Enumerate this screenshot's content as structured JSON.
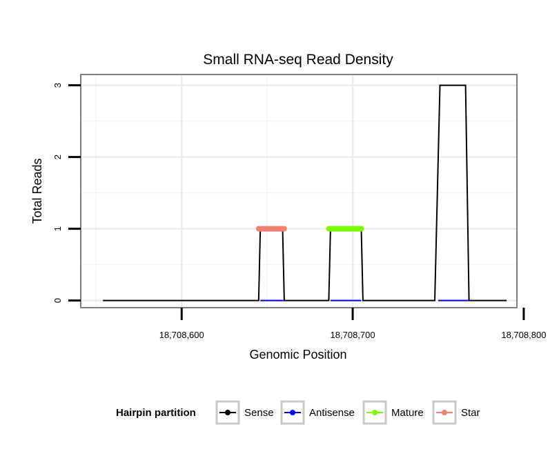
{
  "chart_data": {
    "type": "line",
    "title": "Small RNA-seq Read Density",
    "xlabel": "Genomic Position",
    "ylabel": "Total Reads",
    "xlim": [
      18708541,
      18708796
    ],
    "ylim": [
      -0.1,
      3.15
    ],
    "x_ticks": [
      18708600,
      18708700,
      18708800
    ],
    "x_tick_labels": [
      "18,708,600",
      "18,708,700",
      "18,708,800"
    ],
    "y_ticks": [
      0,
      1,
      2,
      3
    ],
    "y_tick_labels": [
      "0",
      "1",
      "2",
      "3"
    ],
    "grid": true,
    "series": [
      {
        "name": "Sense",
        "color": "#000000",
        "points": [
          [
            18708554,
            0
          ],
          [
            18708645,
            0
          ],
          [
            18708646,
            1
          ],
          [
            18708659,
            1
          ],
          [
            18708660,
            0
          ],
          [
            18708686,
            0
          ],
          [
            18708687,
            1
          ],
          [
            18708705,
            1
          ],
          [
            18708706,
            0
          ],
          [
            18708748,
            0
          ],
          [
            18708751,
            3
          ],
          [
            18708766,
            3
          ],
          [
            18708768,
            0
          ],
          [
            18708790,
            0
          ]
        ]
      },
      {
        "name": "Antisense",
        "color": "#0000ff",
        "points": [
          [
            18708646,
            0
          ],
          [
            18708660,
            0
          ],
          [
            18708687,
            0
          ],
          [
            18708705,
            0
          ],
          [
            18708750,
            0
          ],
          [
            18708768,
            0
          ]
        ]
      },
      {
        "name": "Mature",
        "color": "#7cfc00",
        "points": [
          [
            18708686,
            1
          ],
          [
            18708705,
            1
          ]
        ]
      },
      {
        "name": "Star",
        "color": "#f08070",
        "points": [
          [
            18708645,
            1
          ],
          [
            18708660,
            1
          ]
        ]
      }
    ],
    "legend": {
      "title": "Hairpin partition",
      "position": "bottom",
      "entries": [
        "Sense",
        "Antisense",
        "Mature",
        "Star"
      ]
    }
  }
}
